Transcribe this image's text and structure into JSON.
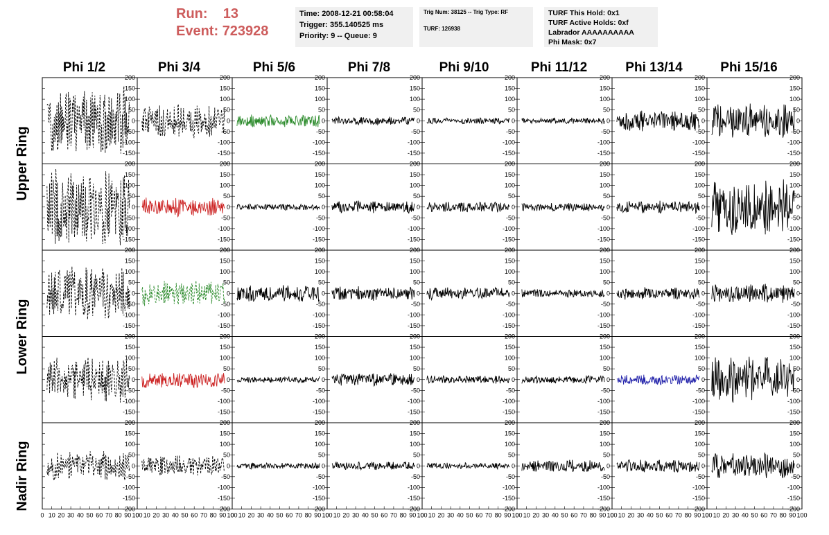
{
  "header": {
    "run_label": "Run:",
    "run_value": "13",
    "event_label": "Event:",
    "event_value": "723928",
    "accent_color": "#cd5c5c"
  },
  "time_box": {
    "time": "Time: 2008-12-21 00:58:04",
    "trigger": "Trigger: 355.140525 ms",
    "priority": "Priority: 9 -- Queue: 9"
  },
  "trig_box": {
    "trig": "Trig Num: 38125 -- Trig Type: RF",
    "turf": "TURF: 126938"
  },
  "turf_box": {
    "this_hold": "TURF This Hold: 0x1",
    "active_holds": "TURF Active Holds: 0xf",
    "labrador": "Labrador AAAAAAAAAA",
    "phi_mask": "Phi Mask: 0x7"
  },
  "phi_headers": [
    "Phi 1/2",
    "Phi 3/4",
    "Phi 5/6",
    "Phi 7/8",
    "Phi 9/10",
    "Phi 11/12",
    "Phi 13/14",
    "Phi 15/16"
  ],
  "ring_labels": [
    "Upper Ring",
    "Lower Ring",
    "Nadir Ring"
  ],
  "axes": {
    "y_ticks": [
      "200",
      "150",
      "100",
      "50",
      "0",
      "-50",
      "-100",
      "-150",
      "-200"
    ],
    "x_ticks": [
      "0",
      "10",
      "20",
      "30",
      "40",
      "50",
      "60",
      "70",
      "80",
      "90",
      "100"
    ],
    "ylim": [
      -200,
      200
    ],
    "xlim": [
      0,
      100
    ]
  },
  "trace_colors": {
    "default": "#000000",
    "green": "#2a8a2a",
    "red": "#cc2222",
    "blue": "#2222aa"
  },
  "waveforms": [
    [
      {
        "amp": 170,
        "dashed": true,
        "color": "default"
      },
      {
        "amp": 80,
        "dashed": true,
        "color": "default"
      },
      {
        "amp": 30,
        "dashed": false,
        "color": "green"
      },
      {
        "amp": 20,
        "dashed": false,
        "color": "default"
      },
      {
        "amp": 15,
        "dashed": false,
        "color": "default"
      },
      {
        "amp": 15,
        "dashed": false,
        "color": "default"
      },
      {
        "amp": 50,
        "dashed": false,
        "color": "default"
      },
      {
        "amp": 80,
        "dashed": false,
        "color": "default"
      }
    ],
    [
      {
        "amp": 190,
        "dashed": true,
        "color": "default"
      },
      {
        "amp": 45,
        "dashed": false,
        "color": "red"
      },
      {
        "amp": 15,
        "dashed": false,
        "color": "default"
      },
      {
        "amp": 30,
        "dashed": false,
        "color": "default"
      },
      {
        "amp": 25,
        "dashed": false,
        "color": "default"
      },
      {
        "amp": 20,
        "dashed": false,
        "color": "default"
      },
      {
        "amp": 30,
        "dashed": false,
        "color": "default"
      },
      {
        "amp": 130,
        "dashed": false,
        "color": "default"
      }
    ],
    [
      {
        "amp": 130,
        "dashed": true,
        "color": "default"
      },
      {
        "amp": 60,
        "dashed": true,
        "color": "green"
      },
      {
        "amp": 40,
        "dashed": false,
        "color": "default"
      },
      {
        "amp": 35,
        "dashed": false,
        "color": "default"
      },
      {
        "amp": 30,
        "dashed": false,
        "color": "default"
      },
      {
        "amp": 20,
        "dashed": false,
        "color": "default"
      },
      {
        "amp": 30,
        "dashed": false,
        "color": "default"
      },
      {
        "amp": 45,
        "dashed": false,
        "color": "default"
      }
    ],
    [
      {
        "amp": 110,
        "dashed": true,
        "color": "default"
      },
      {
        "amp": 40,
        "dashed": false,
        "color": "red"
      },
      {
        "amp": 15,
        "dashed": false,
        "color": "default"
      },
      {
        "amp": 30,
        "dashed": false,
        "color": "default"
      },
      {
        "amp": 20,
        "dashed": false,
        "color": "default"
      },
      {
        "amp": 20,
        "dashed": false,
        "color": "default"
      },
      {
        "amp": 25,
        "dashed": false,
        "color": "blue"
      },
      {
        "amp": 110,
        "dashed": false,
        "color": "default"
      }
    ],
    [
      {
        "amp": 70,
        "dashed": true,
        "color": "default"
      },
      {
        "amp": 50,
        "dashed": true,
        "color": "default"
      },
      {
        "amp": 15,
        "dashed": false,
        "color": "default"
      },
      {
        "amp": 20,
        "dashed": false,
        "color": "default"
      },
      {
        "amp": 15,
        "dashed": false,
        "color": "default"
      },
      {
        "amp": 30,
        "dashed": false,
        "color": "default"
      },
      {
        "amp": 30,
        "dashed": false,
        "color": "default"
      },
      {
        "amp": 60,
        "dashed": false,
        "color": "default"
      }
    ]
  ]
}
